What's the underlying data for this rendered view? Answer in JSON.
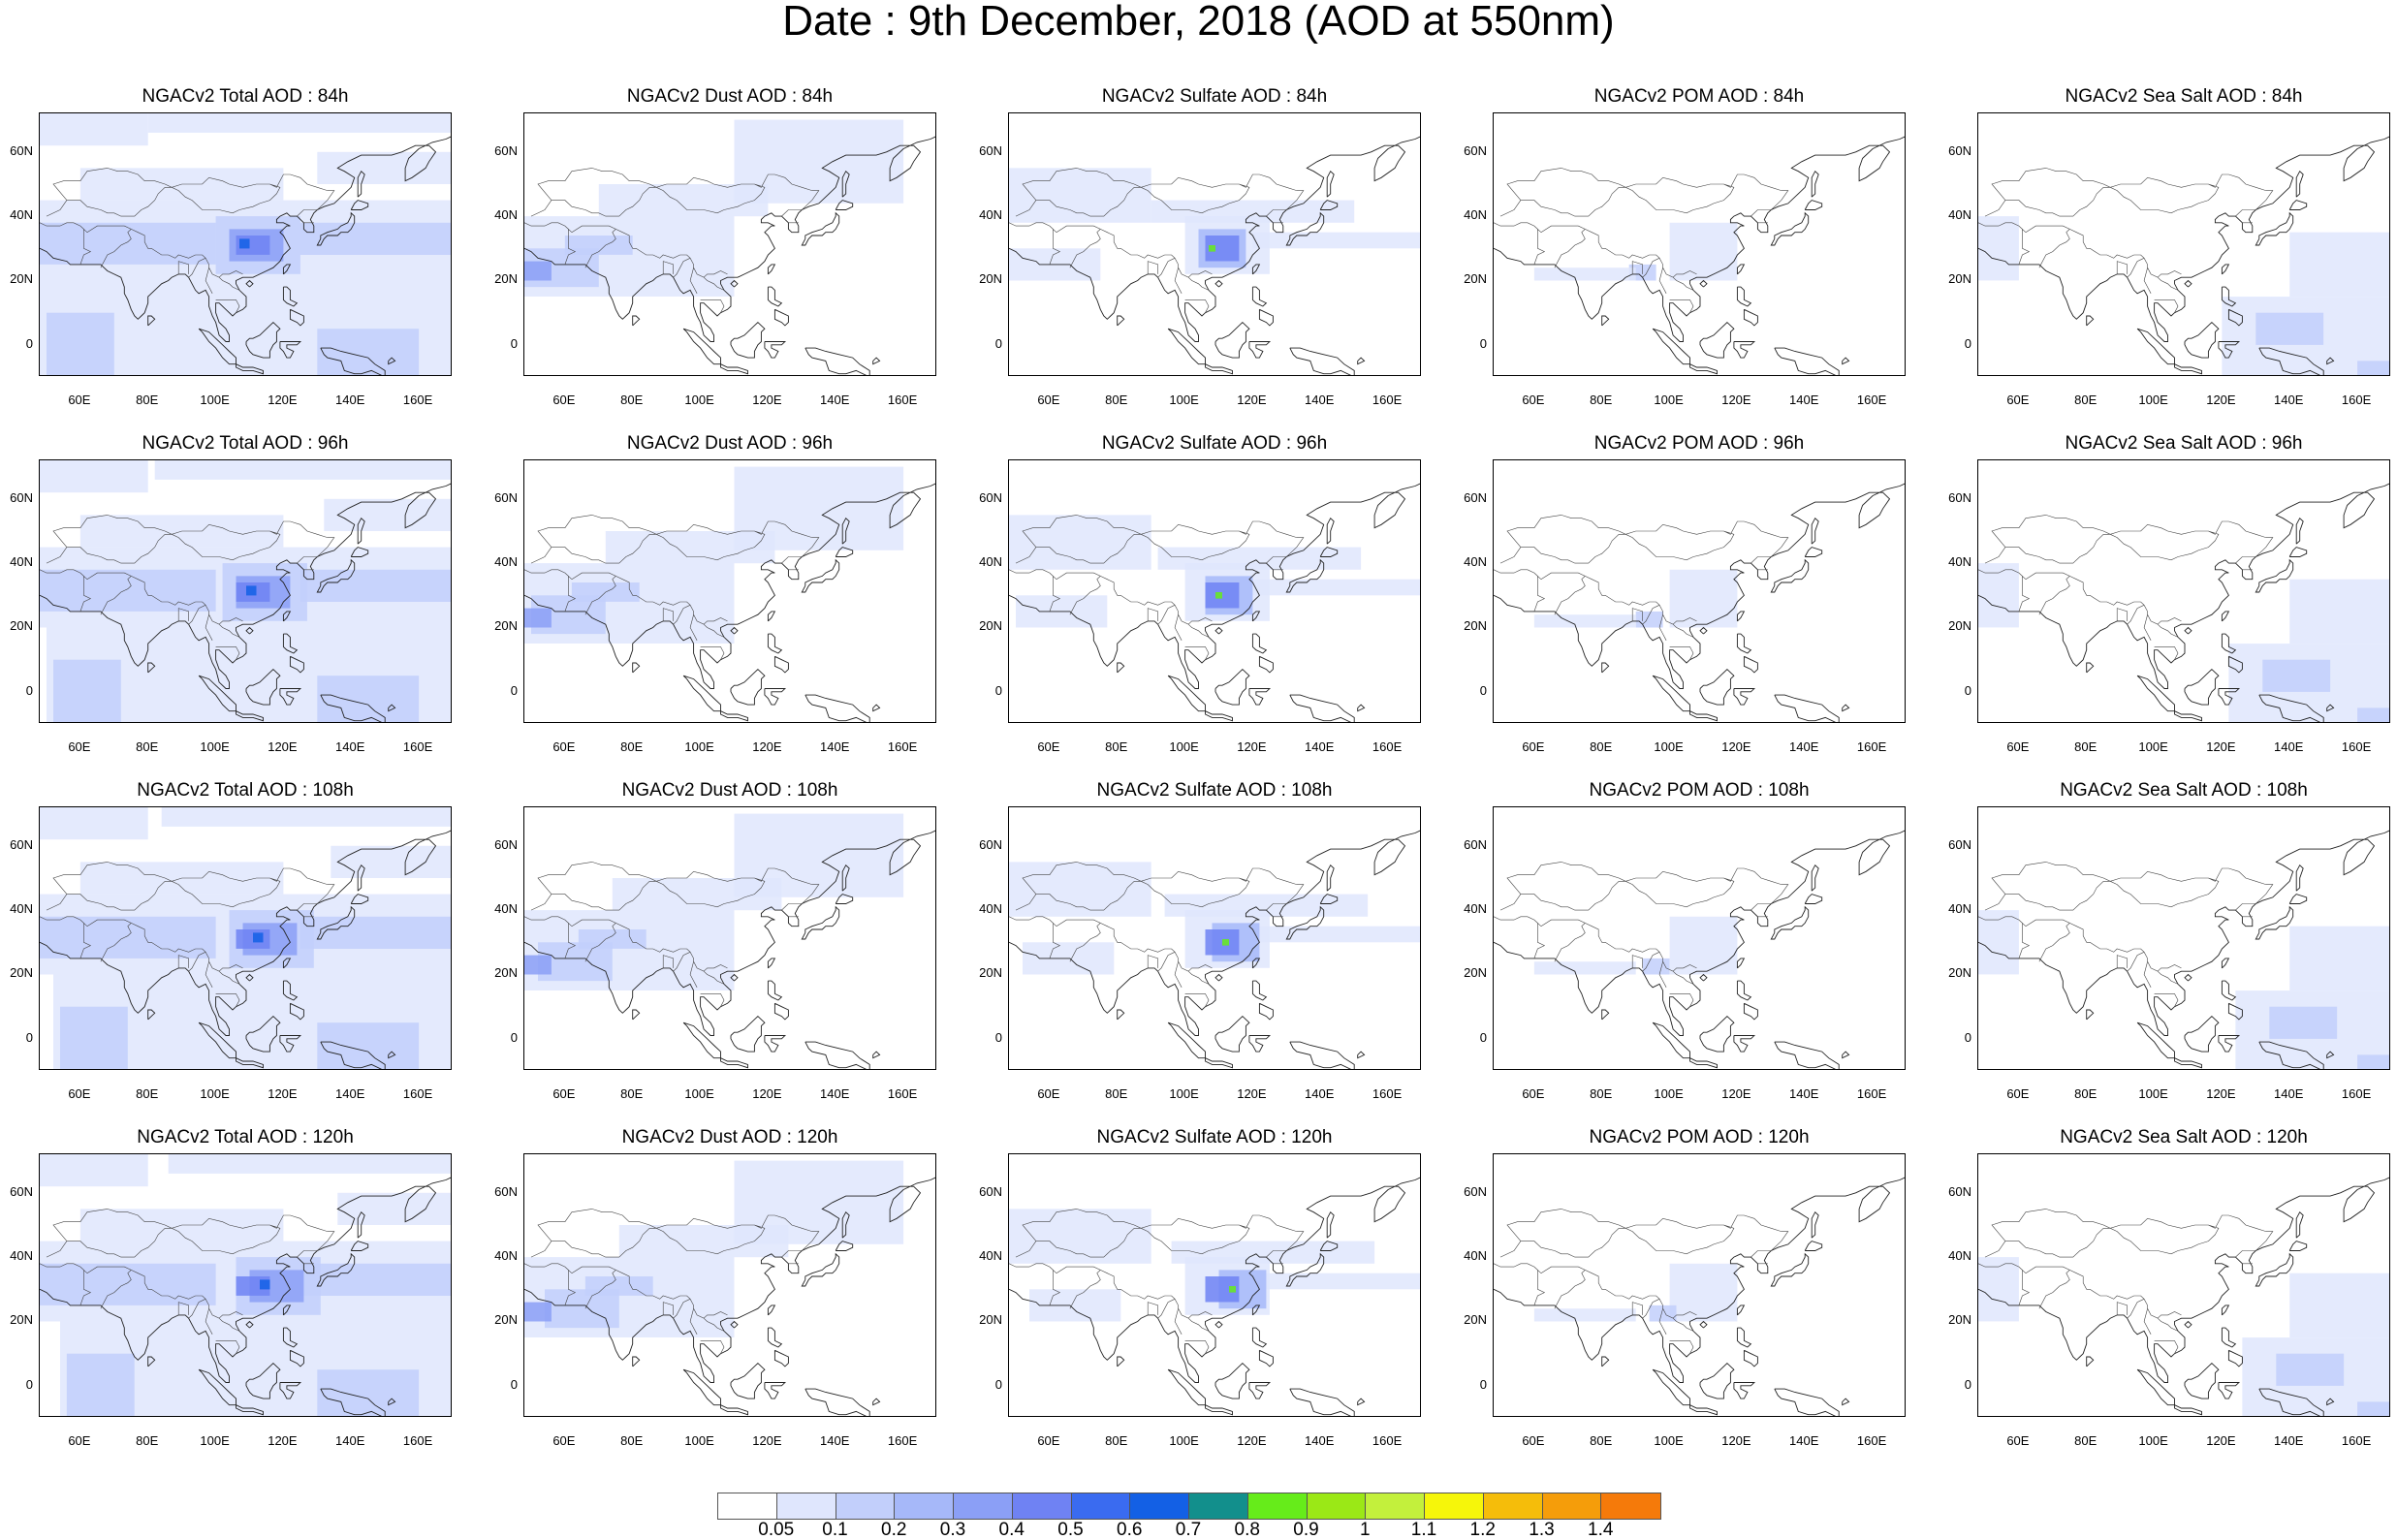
{
  "title": "Date : 9th December, 2018 (AOD at 550nm)",
  "y_ticks": [
    "60N",
    "40N",
    "20N",
    "0"
  ],
  "x_ticks": [
    "60E",
    "80E",
    "100E",
    "120E",
    "140E",
    "160E"
  ],
  "panels": [
    [
      "NGACv2 Total AOD : 84h",
      "NGACv2 Dust AOD : 84h",
      "NGACv2 Sulfate AOD : 84h",
      "NGACv2 POM AOD : 84h",
      "NGACv2 Sea Salt AOD : 84h"
    ],
    [
      "NGACv2 Total AOD : 96h",
      "NGACv2 Dust AOD : 96h",
      "NGACv2 Sulfate AOD : 96h",
      "NGACv2 POM AOD : 96h",
      "NGACv2 Sea Salt AOD : 96h"
    ],
    [
      "NGACv2 Total AOD : 108h",
      "NGACv2 Dust AOD : 108h",
      "NGACv2 Sulfate AOD : 108h",
      "NGACv2 POM AOD : 108h",
      "NGACv2 Sea Salt AOD : 108h"
    ],
    [
      "NGACv2 Total AOD : 120h",
      "NGACv2 Dust AOD : 120h",
      "NGACv2 Sulfate AOD : 120h",
      "NGACv2 POM AOD : 120h",
      "NGACv2 Sea Salt  AOD : 120h"
    ]
  ],
  "colorbar": {
    "labels": [
      "0.05",
      "0.1",
      "0.2",
      "0.3",
      "0.4",
      "0.5",
      "0.6",
      "0.7",
      "0.8",
      "0.9",
      "1",
      "1.1",
      "1.2",
      "1.3",
      "1.4"
    ],
    "colors": [
      "#ffffff",
      "#dfe6fd",
      "#c2cffb",
      "#a6b8f9",
      "#8b9ff6",
      "#6f82f3",
      "#3a6bf0",
      "#1360e5",
      "#128f8c",
      "#66ec1a",
      "#9be816",
      "#c3f03c",
      "#f6f60a",
      "#f5bd0a",
      "#f59d0a",
      "#f57a0a",
      "#f53a0a"
    ]
  }
}
